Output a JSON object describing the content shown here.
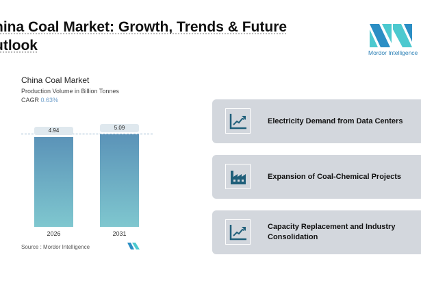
{
  "title": {
    "line1": "hina Coal Market: Growth, Trends & Future",
    "line2": "utlook"
  },
  "logo": {
    "text": "Mordor Intelligence"
  },
  "chart_data": {
    "type": "bar",
    "title": "China Coal Market",
    "subtitle": "Production Volume in Billion Tonnes",
    "cagr_label": "CAGR",
    "cagr_value": "0.63%",
    "categories": [
      "2026",
      "2031"
    ],
    "values": [
      4.94,
      5.09
    ],
    "value_labels": [
      "4.94",
      "5.09"
    ],
    "source": "Source :  Mordor Intelligence"
  },
  "cards": [
    {
      "icon": "line-chart-up-icon",
      "label": "Electricity Demand from Data Centers"
    },
    {
      "icon": "factory-icon",
      "label": "Expansion of Coal-Chemical Projects"
    },
    {
      "icon": "line-chart-up-icon",
      "label": "Capacity Replacement and Industry Consolidation"
    }
  ],
  "colors": {
    "accent": "#1f5f7a",
    "card": "#d3d7dd"
  }
}
